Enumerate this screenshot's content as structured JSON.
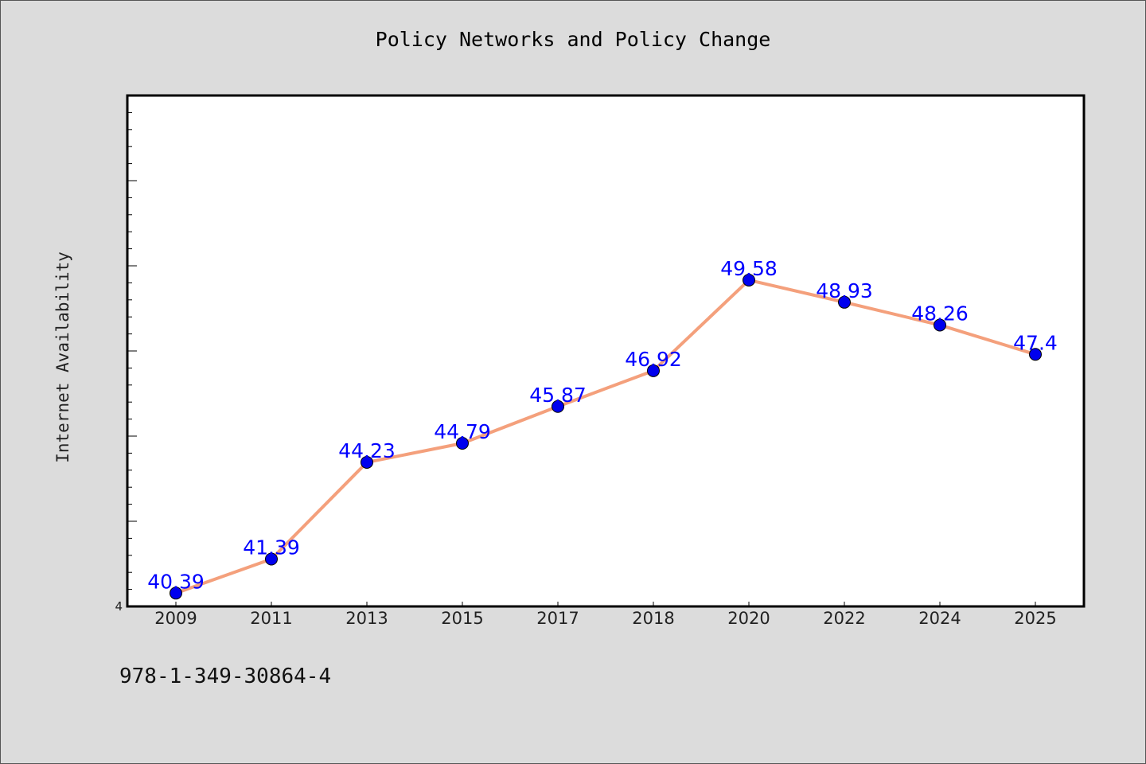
{
  "chart_data": {
    "type": "line",
    "title": "Policy Networks and Policy Change",
    "xlabel": "",
    "ylabel": "Internet Availability",
    "categories": [
      "2009",
      "2011",
      "2013",
      "2015",
      "2017",
      "2018",
      "2020",
      "2022",
      "2024",
      "2025"
    ],
    "series": [
      {
        "values": [
          40.39,
          41.39,
          44.23,
          44.79,
          45.87,
          46.92,
          49.58,
          48.93,
          48.26,
          47.4
        ],
        "data_labels": [
          "40.39",
          "41.39",
          "44.23",
          "44.79",
          "45.87",
          "46.92",
          "49.58",
          "48.93",
          "48.26",
          "47.4"
        ],
        "line_color": "#f4a07c",
        "marker_color": "#0000ee"
      }
    ],
    "ylim": [
      40,
      55
    ],
    "y_tick_labels": [
      "4"
    ],
    "grid": false,
    "legend": "none",
    "label_color": "#0000ff"
  },
  "footer_note": "978-1-349-30864-4"
}
